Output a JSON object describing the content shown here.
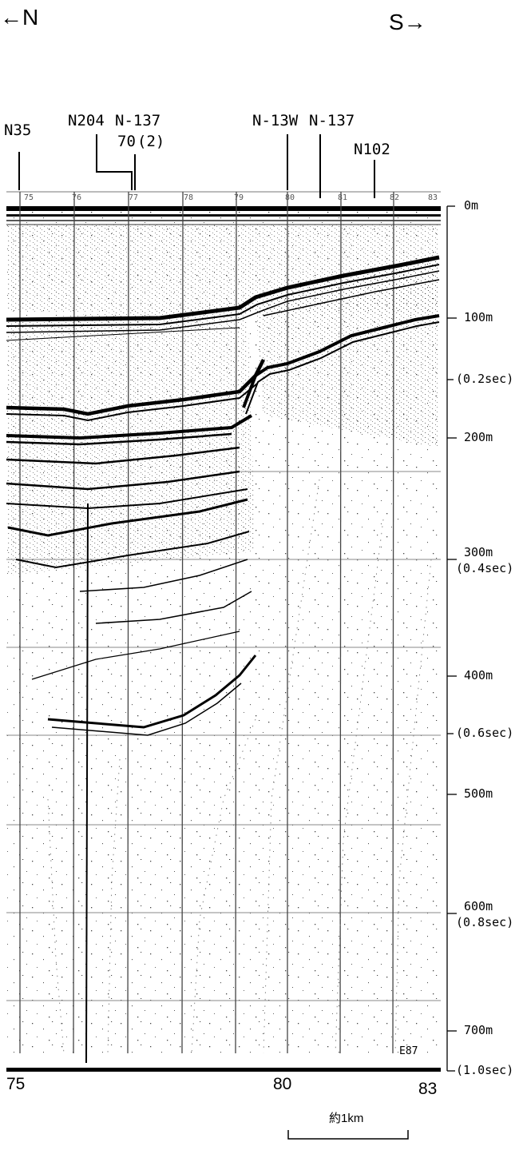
{
  "directions": {
    "north": "←N",
    "south": "S→"
  },
  "survey_lines": {
    "n35": "N35",
    "n204": "N204",
    "n137_left": "N-137",
    "n70": "70",
    "n70_sub": "(2)",
    "n13w": "N-13W",
    "n137_right": "N-137",
    "n102": "N102"
  },
  "depth_scale": {
    "d0": "0m",
    "d100": "100m",
    "t02": "(0.2sec)",
    "d200": "200m",
    "d300": "300m",
    "t04": "(0.4sec)",
    "d400": "400m",
    "t06": "(0.6sec)",
    "d500": "500m",
    "d600": "600m",
    "t08": "(0.8sec)",
    "d700": "700m",
    "t10": "(1.0sec)"
  },
  "top_ticks": [
    "75",
    "76",
    "77",
    "78",
    "79",
    "80",
    "81",
    "82",
    "83"
  ],
  "record_mark": "E87",
  "bottom_axis": {
    "left": "75",
    "mid": "80",
    "right": "83"
  },
  "scale_bar_label": "約1km"
}
